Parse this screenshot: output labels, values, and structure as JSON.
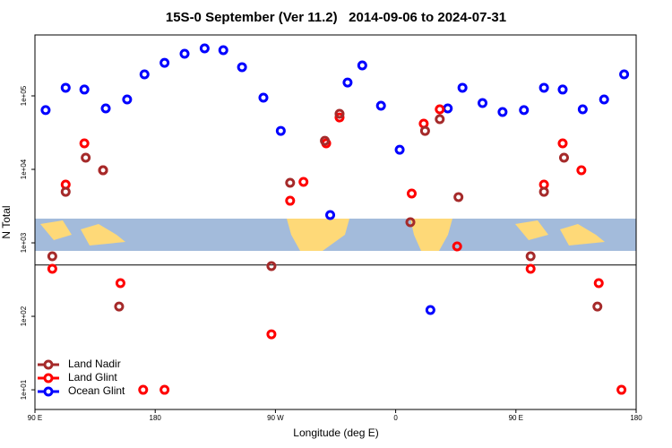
{
  "chart_data": {
    "type": "scatter",
    "title": "15S-0 September (Ver 11.2)   2014-09-06 to 2024-07-31",
    "x_label": "Longitude (deg E)",
    "y_label": "N Total",
    "xlim": [
      90,
      540
    ],
    "xticks": [
      {
        "value": 90,
        "label": "90 E"
      },
      {
        "value": 180,
        "label": "180"
      },
      {
        "value": 270,
        "label": "90 W"
      },
      {
        "value": 360,
        "label": "0"
      },
      {
        "value": 450,
        "label": "90 E"
      },
      {
        "value": 540,
        "label": "180"
      }
    ],
    "ylim": [
      5.4,
      675000
    ],
    "yticks": [
      {
        "value": 10,
        "label": "1e+01"
      },
      {
        "value": 100,
        "label": "1e+02"
      },
      {
        "value": 1000,
        "label": "1e+03"
      },
      {
        "value": 10000,
        "label": "1e+04"
      },
      {
        "value": 100000,
        "label": "1e+05"
      }
    ],
    "log_y": true,
    "hline": 500,
    "legend": "bottom-left",
    "series": [
      {
        "name": "Land Nadir",
        "color": "#a52a2a",
        "x": [
          103,
          113,
          128,
          141,
          153,
          267,
          281,
          307,
          318,
          371,
          382,
          393,
          407,
          461,
          471,
          486,
          511
        ],
        "values": [
          656,
          4950,
          14400,
          9730,
          136,
          482,
          6560,
          24500,
          57000,
          1910,
          33400,
          48200,
          4190,
          656,
          4950,
          14400,
          136
        ]
      },
      {
        "name": "Land Glint",
        "color": "#ff0000",
        "x": [
          103,
          113,
          127,
          141,
          154,
          171,
          187,
          267,
          281,
          291,
          308,
          318,
          372,
          381,
          393,
          406,
          461,
          471,
          485,
          499,
          512,
          529
        ],
        "values": [
          443,
          6200,
          22600,
          9730,
          283,
          10,
          10,
          57,
          3740,
          6750,
          22600,
          50900,
          4690,
          41900,
          65600,
          894,
          443,
          6200,
          22600,
          9730,
          283,
          10
        ]
      },
      {
        "name": "Ocean Glint",
        "color": "#0000ff",
        "x": [
          98,
          113,
          127,
          143,
          159,
          172,
          187,
          202,
          217,
          231,
          245,
          261,
          274,
          311,
          324,
          335,
          349,
          363,
          386,
          399,
          410,
          425,
          440,
          456,
          471,
          485,
          500,
          516,
          531
        ],
        "values": [
          64000,
          129000,
          122000,
          67500,
          89300,
          196000,
          282000,
          374000,
          443000,
          419000,
          246000,
          94600,
          33400,
          2390,
          152000,
          260000,
          73500,
          18500,
          122,
          67500,
          129000,
          79800,
          60300,
          64000,
          129000,
          122000,
          65600,
          89300,
          196000
        ]
      }
    ]
  }
}
